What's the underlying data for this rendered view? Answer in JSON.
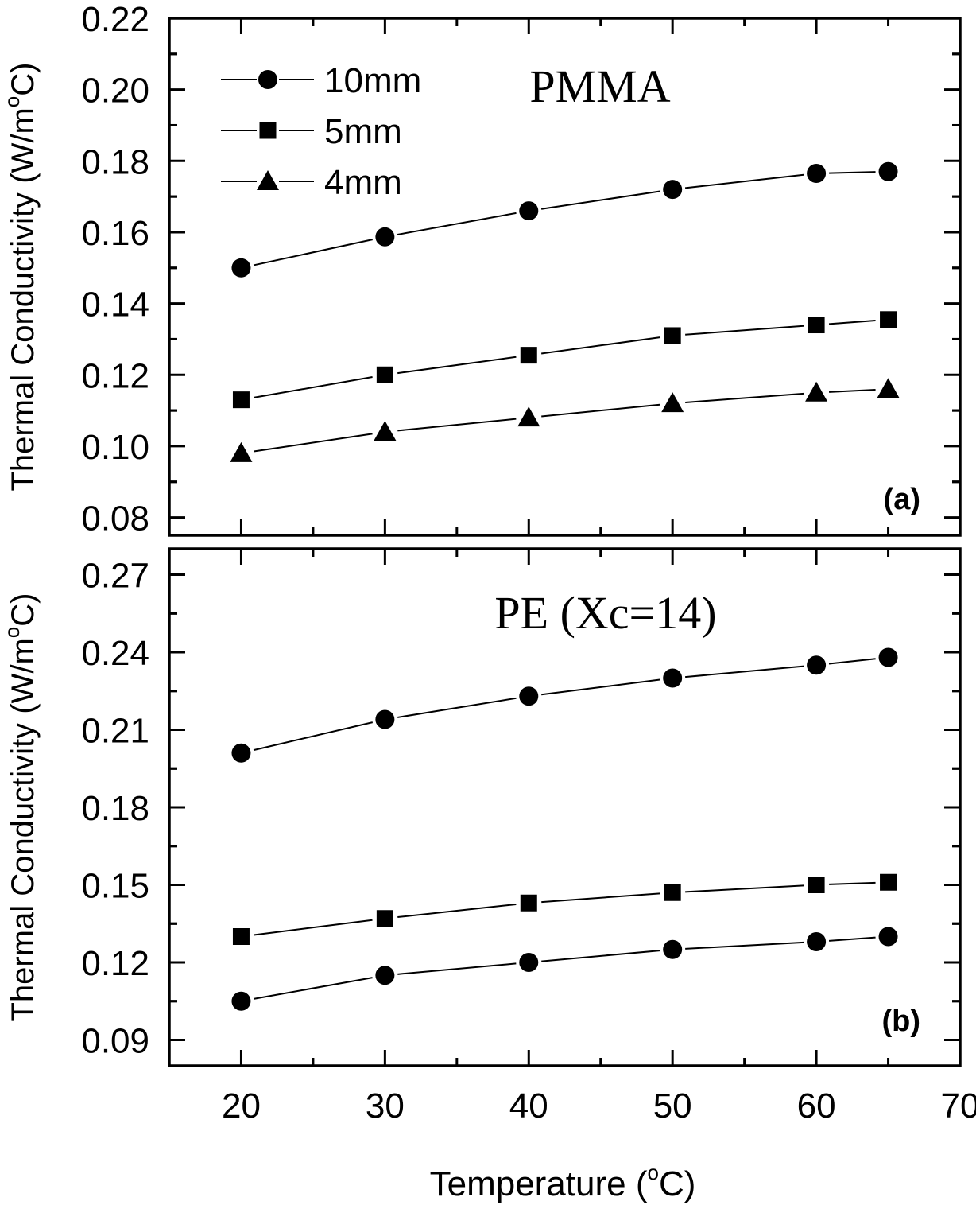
{
  "chart_data": [
    {
      "type": "line",
      "panel_label": "(a)",
      "title": "PMMA",
      "xlabel": "Temperature (°C)",
      "ylabel": "Thermal Conductivity (W/m°C)",
      "xlim": [
        15,
        70
      ],
      "ylim": [
        0.075,
        0.22
      ],
      "x_ticks": [
        20,
        30,
        40,
        50,
        60,
        70
      ],
      "y_ticks": [
        "0.08",
        "0.10",
        "0.12",
        "0.14",
        "0.16",
        "0.18",
        "0.20",
        "0.22"
      ],
      "grid": false,
      "legend_position": "top-left",
      "x": [
        20,
        30,
        40,
        50,
        60,
        65
      ],
      "series": [
        {
          "name": "10mm",
          "marker": "circle",
          "values": [
            0.15,
            0.1587,
            0.166,
            0.172,
            0.1765,
            0.177
          ]
        },
        {
          "name": "5mm",
          "marker": "square",
          "values": [
            0.113,
            0.12,
            0.1255,
            0.131,
            0.134,
            0.1355
          ]
        },
        {
          "name": "4mm",
          "marker": "triangle",
          "values": [
            0.098,
            0.104,
            0.108,
            0.112,
            0.115,
            0.116
          ]
        }
      ]
    },
    {
      "type": "line",
      "panel_label": "(b)",
      "title": "PE (Xc=14)",
      "xlabel": "Temperature (°C)",
      "ylabel": "Thermal Conductivity (W/m°C)",
      "xlim": [
        15,
        70
      ],
      "ylim": [
        0.08,
        0.28
      ],
      "x_ticks": [
        20,
        30,
        40,
        50,
        60,
        70
      ],
      "y_ticks": [
        "0.09",
        "0.12",
        "0.15",
        "0.18",
        "0.21",
        "0.24",
        "0.27"
      ],
      "grid": false,
      "x": [
        20,
        30,
        40,
        50,
        60,
        65
      ],
      "series": [
        {
          "name": "10mm",
          "marker": "circle",
          "values": [
            0.201,
            0.214,
            0.223,
            0.23,
            0.235,
            0.238
          ]
        },
        {
          "name": "5mm",
          "marker": "square",
          "values": [
            0.13,
            0.137,
            0.143,
            0.147,
            0.15,
            0.151
          ]
        },
        {
          "name": "4mm",
          "marker": "circle",
          "values": [
            0.105,
            0.115,
            0.12,
            0.125,
            0.128,
            0.13
          ]
        }
      ]
    }
  ],
  "labels": {
    "xlabel_main": "Temperature (",
    "xlabel_deg": "o",
    "xlabel_end": "C)",
    "ylabel_main": "Thermal Conductivity (W/m",
    "ylabel_deg": "o",
    "ylabel_end": "C)"
  },
  "colors": {
    "ink": "#000000",
    "background": "#ffffff"
  }
}
